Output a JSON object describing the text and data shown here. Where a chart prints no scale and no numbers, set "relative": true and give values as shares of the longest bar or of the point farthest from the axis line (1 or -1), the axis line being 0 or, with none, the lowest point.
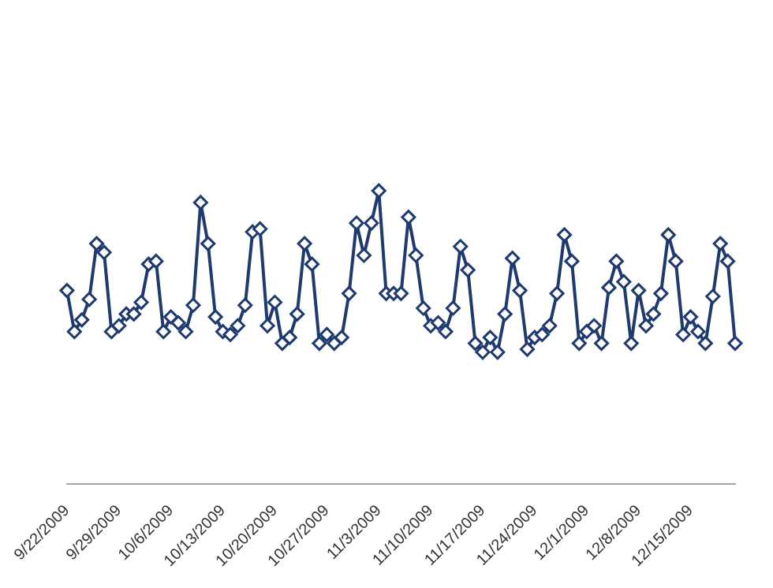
{
  "chart_data": {
    "type": "line",
    "relative": true,
    "marker": "diamond",
    "line_style": "solid",
    "grid": false,
    "legend": false,
    "categories": [
      "9/22/2009",
      null,
      null,
      null,
      null,
      null,
      null,
      "9/29/2009",
      null,
      null,
      null,
      null,
      null,
      null,
      "10/6/2009",
      null,
      null,
      null,
      null,
      null,
      null,
      "10/13/2009",
      null,
      null,
      null,
      null,
      null,
      null,
      "10/20/2009",
      null,
      null,
      null,
      null,
      null,
      null,
      "10/27/2009",
      null,
      null,
      null,
      null,
      null,
      null,
      "11/3/2009",
      null,
      null,
      null,
      null,
      null,
      null,
      "11/10/2009",
      null,
      null,
      null,
      null,
      null,
      null,
      "11/17/2009",
      null,
      null,
      null,
      null,
      null,
      null,
      "11/24/2009",
      null,
      null,
      null,
      null,
      null,
      null,
      "12/1/2009",
      null,
      null,
      null,
      null,
      null,
      null,
      "12/8/2009",
      null,
      null,
      null,
      null,
      null,
      null,
      "12/15/2009",
      null,
      null,
      null,
      null,
      null,
      null
    ],
    "series": [
      {
        "color": "#1f3a6e",
        "values": [
          0.66,
          0.52,
          0.56,
          0.63,
          0.82,
          0.79,
          0.52,
          0.54,
          0.58,
          0.58,
          0.62,
          0.75,
          0.76,
          0.52,
          0.57,
          0.55,
          0.52,
          0.61,
          0.96,
          0.82,
          0.57,
          0.52,
          0.51,
          0.54,
          0.61,
          0.86,
          0.87,
          0.54,
          0.62,
          0.48,
          0.5,
          0.58,
          0.82,
          0.75,
          0.48,
          0.51,
          0.48,
          0.5,
          0.65,
          0.89,
          0.78,
          0.89,
          1,
          0.65,
          0.65,
          0.65,
          0.91,
          0.78,
          0.6,
          0.54,
          0.55,
          0.52,
          0.6,
          0.81,
          0.73,
          0.48,
          0.45,
          0.5,
          0.45,
          0.58,
          0.77,
          0.66,
          0.46,
          0.5,
          0.51,
          0.54,
          0.65,
          0.85,
          0.76,
          0.48,
          0.52,
          0.54,
          0.48,
          0.67,
          0.76,
          0.69,
          0.48,
          0.66,
          0.54,
          0.58,
          0.65,
          0.85,
          0.76,
          0.51,
          0.57,
          0.52,
          0.48,
          0.64,
          0.82,
          0.76,
          0.48
        ]
      }
    ]
  }
}
